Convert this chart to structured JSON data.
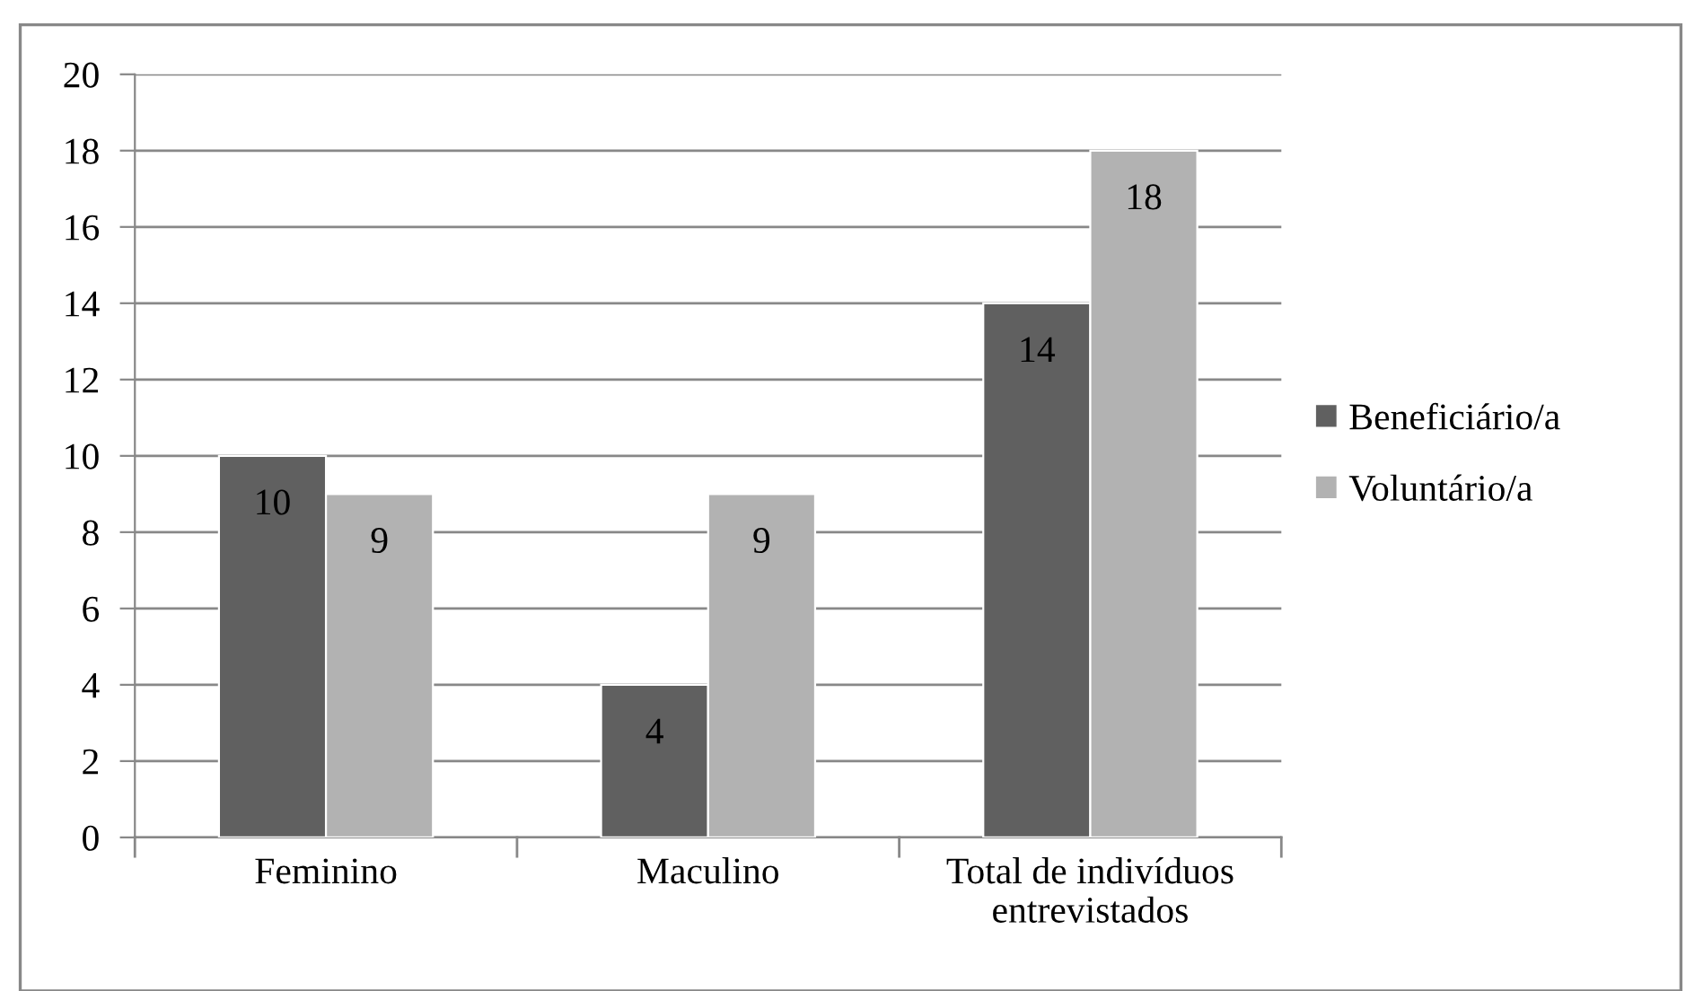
{
  "chart_data": {
    "type": "bar",
    "categories": [
      "Feminino",
      "Maculino",
      "Total de indivíduos\nentrevistados"
    ],
    "series": [
      {
        "name": "Beneficiário/a",
        "color": "#606060",
        "values": [
          10,
          4,
          14
        ]
      },
      {
        "name": "Voluntário/a",
        "color": "#b2b2b2",
        "values": [
          9,
          9,
          18
        ]
      }
    ],
    "ylim": [
      0,
      20
    ],
    "yticks": [
      0,
      2,
      4,
      6,
      8,
      10,
      12,
      14,
      16,
      18,
      20
    ],
    "grid": "y",
    "legend": "right",
    "data_labels": true
  }
}
